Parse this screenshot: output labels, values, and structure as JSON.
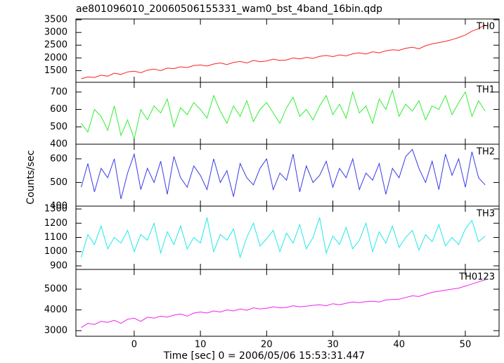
{
  "title": "ae801096010_20060506155331_wam0_bst_4band_16bin.qdp",
  "x_label": "Time [sec] 0 = 2006/05/06 15:53:31.447",
  "y_label": "Counts/sec",
  "chart_data": [
    {
      "type": "line",
      "label": "TH0",
      "color": "#ff2020",
      "x": [
        -8,
        -7,
        -6,
        -5,
        -4,
        -3,
        -2,
        -1,
        0,
        1,
        2,
        3,
        4,
        5,
        6,
        7,
        8,
        9,
        10,
        11,
        12,
        13,
        14,
        15,
        16,
        17,
        18,
        19,
        20,
        21,
        22,
        23,
        24,
        25,
        26,
        27,
        28,
        29,
        30,
        31,
        32,
        33,
        34,
        35,
        36,
        37,
        38,
        39,
        40,
        41,
        42,
        43,
        44,
        45,
        46,
        47,
        48,
        49,
        50,
        51,
        52,
        53
      ],
      "values": [
        1180,
        1250,
        1230,
        1320,
        1280,
        1400,
        1350,
        1450,
        1480,
        1420,
        1520,
        1560,
        1500,
        1600,
        1580,
        1650,
        1620,
        1700,
        1720,
        1680,
        1760,
        1800,
        1740,
        1820,
        1860,
        1800,
        1900,
        1850,
        1880,
        1950,
        1900,
        1920,
        2000,
        1960,
        2020,
        1980,
        2060,
        2100,
        2050,
        2120,
        2080,
        2160,
        2200,
        2150,
        2240,
        2200,
        2280,
        2320,
        2300,
        2380,
        2420,
        2360,
        2480,
        2550,
        2600,
        2650,
        2720,
        2800,
        2900,
        3050,
        3150,
        3300
      ],
      "xlim": [
        -8.8,
        55.1
      ],
      "xticks": [
        0,
        10,
        20,
        30,
        40,
        50
      ],
      "ylim": [
        1040,
        3530
      ],
      "yticks": [
        1500,
        2000,
        2500,
        3000,
        3500
      ]
    },
    {
      "type": "line",
      "label": "TH1",
      "color": "#33ee33",
      "x": [
        -8,
        -7,
        -6,
        -5,
        -4,
        -3,
        -2,
        -1,
        0,
        1,
        2,
        3,
        4,
        5,
        6,
        7,
        8,
        9,
        10,
        11,
        12,
        13,
        14,
        15,
        16,
        17,
        18,
        19,
        20,
        21,
        22,
        23,
        24,
        25,
        26,
        27,
        28,
        29,
        30,
        31,
        32,
        33,
        34,
        35,
        36,
        37,
        38,
        39,
        40,
        41,
        42,
        43,
        44,
        45,
        46,
        47,
        48,
        49,
        50,
        51,
        52,
        53
      ],
      "values": [
        520,
        470,
        600,
        560,
        480,
        620,
        450,
        540,
        430,
        600,
        540,
        620,
        580,
        660,
        500,
        610,
        570,
        640,
        600,
        550,
        680,
        590,
        520,
        620,
        560,
        650,
        530,
        600,
        640,
        580,
        520,
        610,
        670,
        560,
        600,
        540,
        620,
        680,
        570,
        630,
        550,
        700,
        580,
        620,
        520,
        660,
        600,
        710,
        560,
        630,
        590,
        650,
        540,
        620,
        600,
        680,
        570,
        640,
        700,
        560,
        650,
        590
      ],
      "xlim": [
        -8.8,
        55.1
      ],
      "xticks": [
        0,
        10,
        20,
        30,
        40,
        50
      ],
      "ylim": [
        400,
        756
      ],
      "yticks": [
        400,
        500,
        600,
        700
      ]
    },
    {
      "type": "line",
      "label": "TH2",
      "color": "#3a3ae8",
      "x": [
        -8,
        -7,
        -6,
        -5,
        -4,
        -3,
        -2,
        -1,
        0,
        1,
        2,
        3,
        4,
        5,
        6,
        7,
        8,
        9,
        10,
        11,
        12,
        13,
        14,
        15,
        16,
        17,
        18,
        19,
        20,
        21,
        22,
        23,
        24,
        25,
        26,
        27,
        28,
        29,
        30,
        31,
        32,
        33,
        34,
        35,
        36,
        37,
        38,
        39,
        40,
        41,
        42,
        43,
        44,
        45,
        46,
        47,
        48,
        49,
        50,
        51,
        52,
        53
      ],
      "values": [
        480,
        580,
        460,
        560,
        520,
        600,
        430,
        540,
        620,
        470,
        560,
        500,
        590,
        450,
        610,
        520,
        480,
        570,
        530,
        470,
        600,
        500,
        550,
        440,
        580,
        520,
        490,
        560,
        600,
        470,
        540,
        510,
        620,
        460,
        570,
        500,
        530,
        590,
        480,
        560,
        520,
        600,
        470,
        540,
        510,
        580,
        450,
        560,
        520,
        610,
        640,
        560,
        500,
        590,
        470,
        620,
        530,
        600,
        480,
        630,
        520,
        490
      ],
      "xlim": [
        -8.8,
        55.1
      ],
      "xticks": [
        0,
        10,
        20,
        30,
        40,
        50
      ],
      "ylim": [
        400,
        662
      ],
      "yticks": [
        400,
        500,
        600
      ]
    },
    {
      "type": "line",
      "label": "TH3",
      "color": "#22e8e8",
      "x": [
        -8,
        -7,
        -6,
        -5,
        -4,
        -3,
        -2,
        -1,
        0,
        1,
        2,
        3,
        4,
        5,
        6,
        7,
        8,
        9,
        10,
        11,
        12,
        13,
        14,
        15,
        16,
        17,
        18,
        19,
        20,
        21,
        22,
        23,
        24,
        25,
        26,
        27,
        28,
        29,
        30,
        31,
        32,
        33,
        34,
        35,
        36,
        37,
        38,
        39,
        40,
        41,
        42,
        43,
        44,
        45,
        46,
        47,
        48,
        49,
        50,
        51,
        52,
        53
      ],
      "values": [
        960,
        1120,
        1050,
        1180,
        1020,
        1100,
        1060,
        1150,
        1000,
        1120,
        1080,
        1200,
        990,
        1140,
        1050,
        1180,
        1020,
        1100,
        1060,
        1240,
        1000,
        1120,
        1080,
        1160,
        960,
        1100,
        1200,
        1040,
        1090,
        1150,
        1000,
        1130,
        1060,
        1190,
        1020,
        1100,
        1240,
        990,
        1110,
        1050,
        1170,
        1020,
        1080,
        1200,
        1000,
        1140,
        1060,
        1180,
        1030,
        1100,
        1150,
        1010,
        1120,
        1070,
        1190,
        1040,
        1100,
        1050,
        1160,
        1220,
        1070,
        1110
      ],
      "xlim": [
        -8.8,
        55.1
      ],
      "xticks": [
        0,
        10,
        20,
        30,
        40,
        50
      ],
      "ylim": [
        875,
        1320
      ],
      "yticks": [
        900,
        1000,
        1100,
        1200,
        1300
      ]
    },
    {
      "type": "line",
      "label": "TH0123",
      "color": "#ee22ee",
      "x": [
        -8,
        -7,
        -6,
        -5,
        -4,
        -3,
        -2,
        -1,
        0,
        1,
        2,
        3,
        4,
        5,
        6,
        7,
        8,
        9,
        10,
        11,
        12,
        13,
        14,
        15,
        16,
        17,
        18,
        19,
        20,
        21,
        22,
        23,
        24,
        25,
        26,
        27,
        28,
        29,
        30,
        31,
        32,
        33,
        34,
        35,
        36,
        37,
        38,
        39,
        40,
        41,
        42,
        43,
        44,
        45,
        46,
        47,
        48,
        49,
        50,
        51,
        52,
        53
      ],
      "values": [
        3150,
        3350,
        3300,
        3450,
        3400,
        3500,
        3350,
        3550,
        3600,
        3450,
        3650,
        3600,
        3700,
        3650,
        3750,
        3800,
        3700,
        3850,
        3900,
        3850,
        3950,
        3900,
        4000,
        3950,
        4050,
        3980,
        4100,
        4050,
        4080,
        4150,
        4100,
        4120,
        4200,
        4150,
        4180,
        4220,
        4250,
        4200,
        4300,
        4250,
        4320,
        4380,
        4350,
        4400,
        4420,
        4380,
        4480,
        4500,
        4520,
        4600,
        4680,
        4650,
        4750,
        4850,
        4900,
        4950,
        5000,
        5050,
        5150,
        5250,
        5350,
        5450
      ],
      "xlim": [
        -8.8,
        55.1
      ],
      "xticks": [
        0,
        10,
        20,
        30,
        40,
        50
      ],
      "ylim": [
        2730,
        5950
      ],
      "yticks": [
        3000,
        4000,
        5000
      ]
    }
  ]
}
